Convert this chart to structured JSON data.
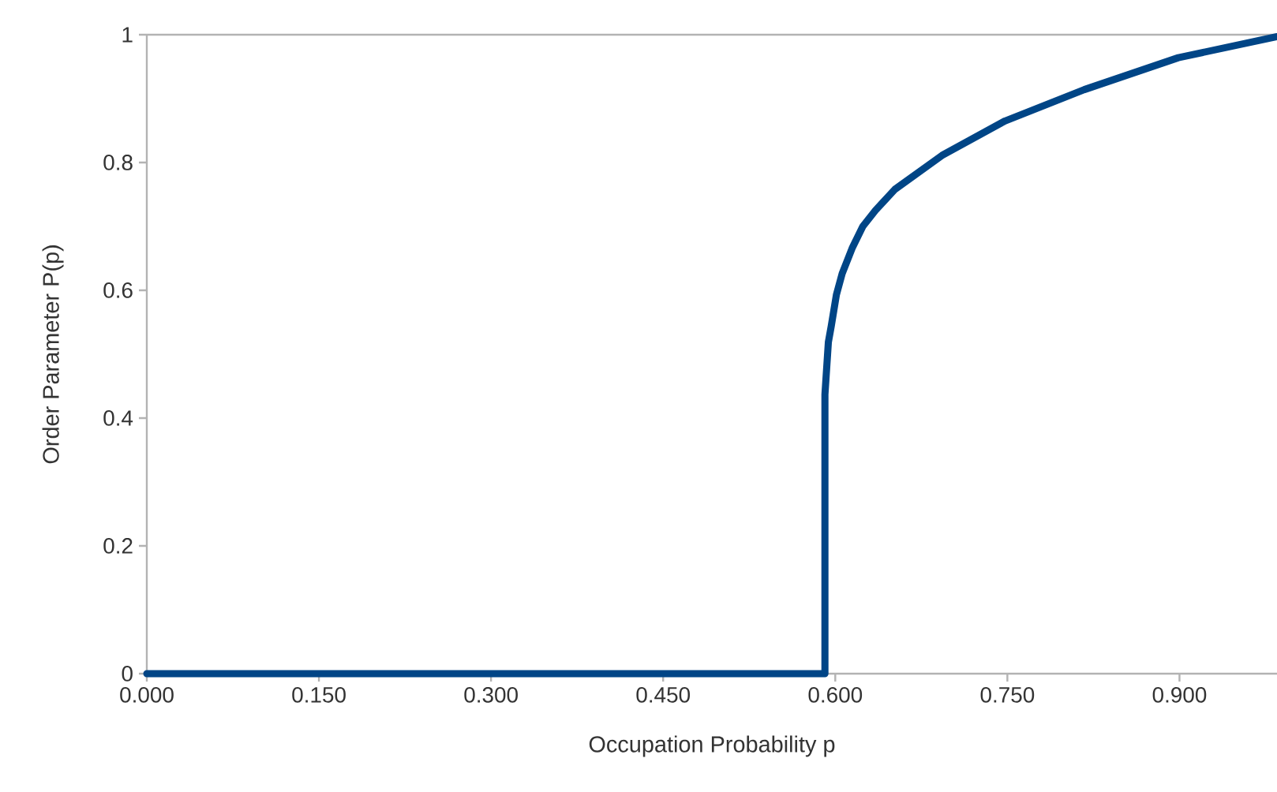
{
  "chart_data": {
    "type": "line",
    "xlabel": "Occupation Probability p",
    "ylabel": "Order Parameter P(p)",
    "x": [
      0,
      0.591,
      0.591,
      0.594,
      0.5965,
      0.601,
      0.606,
      0.615,
      0.624,
      0.635,
      0.652,
      0.693,
      0.748,
      0.817,
      0.899,
      0.985
    ],
    "series": [
      {
        "color": "#004586",
        "values": [
          0,
          0,
          0.437,
          0.519,
          0.544,
          0.593,
          0.626,
          0.667,
          0.7,
          0.725,
          0.758,
          0.811,
          0.865,
          0.914,
          0.964,
          0.997
        ]
      }
    ],
    "xlim": [
      0,
      0.985
    ],
    "ylim": [
      0,
      1
    ],
    "xticks": [
      {
        "value": 0,
        "label": "0.000"
      },
      {
        "value": 0.15,
        "label": "0.150"
      },
      {
        "value": 0.3,
        "label": "0.300"
      },
      {
        "value": 0.45,
        "label": "0.450"
      },
      {
        "value": 0.6,
        "label": "0.600"
      },
      {
        "value": 0.75,
        "label": "0.750"
      },
      {
        "value": 0.9,
        "label": "0.900"
      }
    ],
    "yticks": [
      0,
      0.2,
      0.4,
      0.6,
      0.8,
      1
    ],
    "grid": false,
    "marker": "none",
    "line_style": "solid"
  }
}
